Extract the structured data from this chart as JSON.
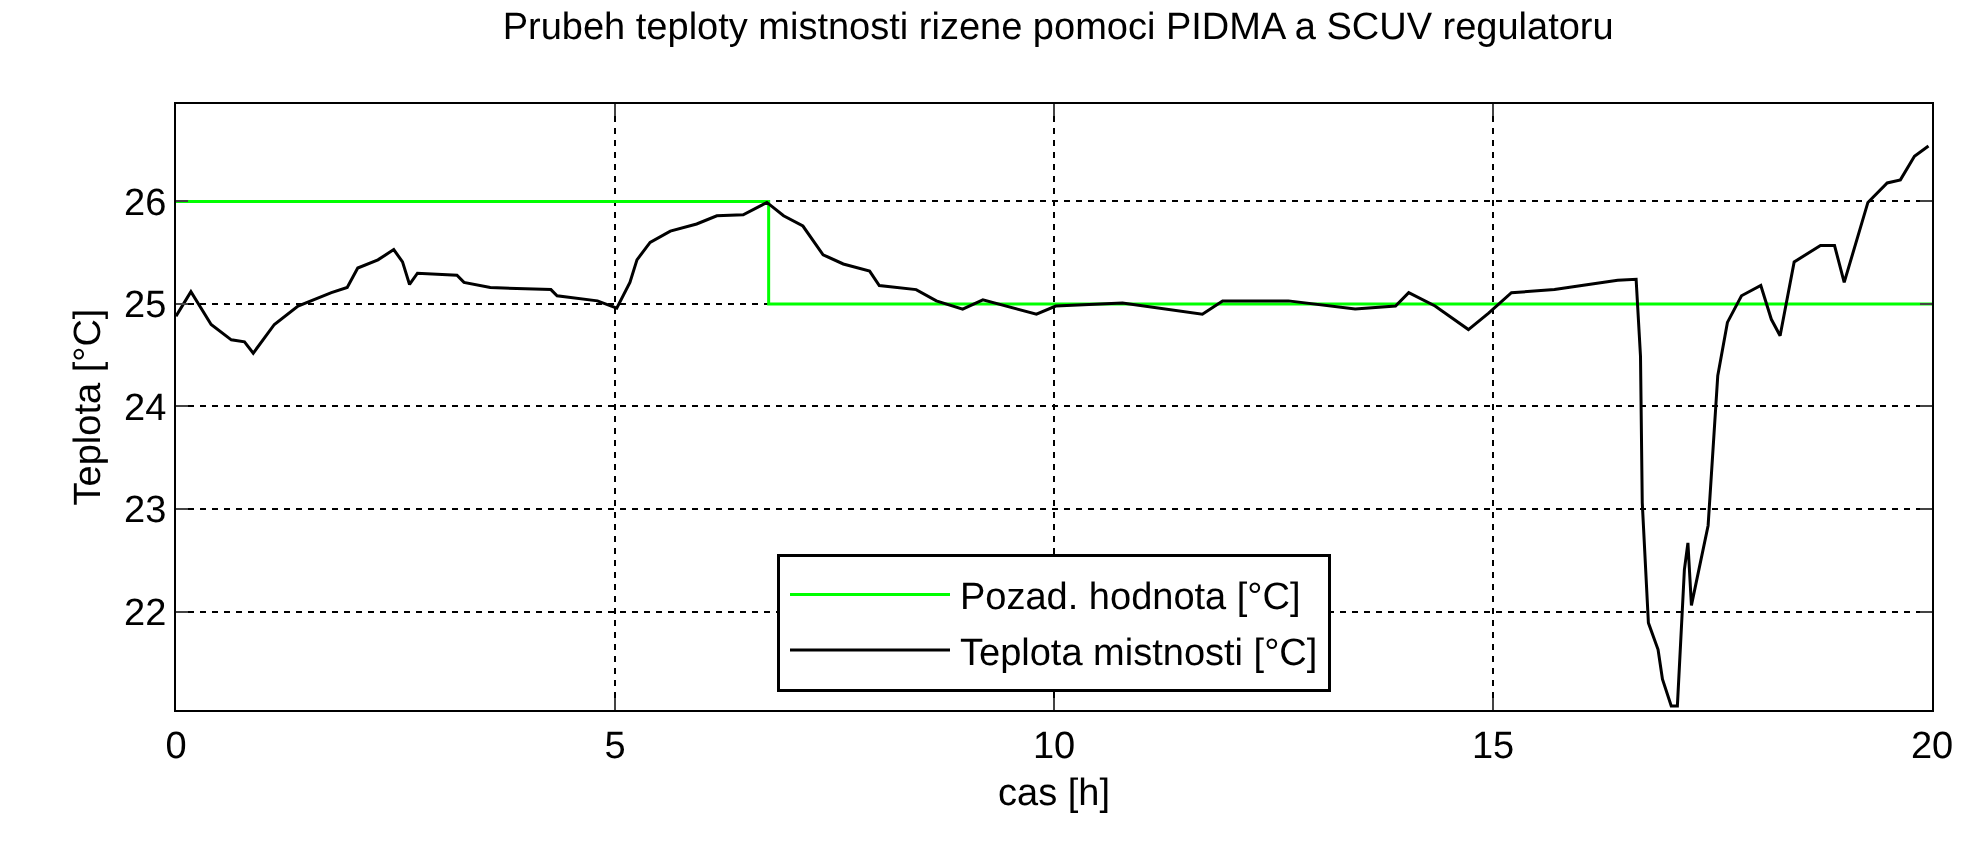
{
  "chart_data": {
    "type": "line",
    "title": "Prubeh teploty mistnosti rizene pomoci PIDMA a SCUV regulatoru",
    "xlabel": "cas [h]",
    "ylabel": "Teplota [°C]",
    "xlim": [
      0,
      20
    ],
    "xticks": [
      0,
      5,
      10,
      15,
      20
    ],
    "ylim": [
      21.04,
      26.95
    ],
    "yticks": [
      22,
      23,
      24,
      25,
      26
    ],
    "grid": true,
    "legend": "bottom",
    "series": [
      {
        "name": "Pozad. hodnota [°C]",
        "type": "step",
        "color": "#00ff00",
        "x": [
          0,
          6.75,
          20
        ],
        "values": [
          26,
          25,
          25
        ]
      },
      {
        "name": "Teplota mistnosti [°C]",
        "color": "#000000",
        "x": [
          0,
          0.17,
          0.4,
          0.63,
          0.78,
          0.88,
          1.12,
          1.39,
          1.77,
          1.95,
          2.07,
          2.3,
          2.48,
          2.58,
          2.66,
          2.75,
          3.2,
          3.28,
          3.58,
          4.27,
          4.34,
          4.8,
          5.02,
          5.17,
          5.25,
          5.4,
          5.63,
          5.93,
          6.16,
          6.46,
          6.73,
          6.92,
          7.14,
          7.37,
          7.6,
          7.9,
          8.01,
          8.43,
          8.66,
          8.96,
          9.19,
          9.8,
          10.02,
          10.78,
          11.69,
          11.92,
          12.67,
          13.43,
          13.89,
          14.04,
          14.34,
          14.72,
          14.95,
          15.21,
          15.7,
          16.01,
          16.42,
          16.63,
          16.68,
          16.7,
          16.77,
          16.88,
          16.93,
          17.03,
          17.1,
          17.18,
          17.22,
          17.26,
          17.45,
          17.56,
          17.67,
          17.83,
          18.05,
          18.17,
          18.27,
          18.43,
          18.73,
          18.89,
          19,
          19.27,
          19.49,
          19.64,
          19.8,
          19.96
        ],
        "values": [
          24.88,
          25.12,
          24.8,
          24.65,
          24.63,
          24.52,
          24.8,
          24.98,
          25.11,
          25.16,
          25.35,
          25.43,
          25.53,
          25.41,
          25.19,
          25.3,
          25.28,
          25.21,
          25.16,
          25.14,
          25.08,
          25.03,
          24.96,
          25.21,
          25.43,
          25.6,
          25.71,
          25.78,
          25.86,
          25.87,
          25.99,
          25.86,
          25.76,
          25.48,
          25.39,
          25.32,
          25.18,
          25.14,
          25.03,
          24.95,
          25.04,
          24.9,
          24.98,
          25.01,
          24.9,
          25.03,
          25.03,
          24.95,
          24.98,
          25.11,
          24.98,
          24.75,
          24.91,
          25.11,
          25.14,
          25.18,
          25.23,
          25.24,
          24.49,
          23.06,
          21.89,
          21.63,
          21.34,
          21.08,
          21.08,
          22.41,
          22.67,
          22.06,
          22.84,
          24.3,
          24.82,
          25.08,
          25.18,
          24.85,
          24.69,
          25.41,
          25.57,
          25.57,
          25.21,
          25.99,
          26.18,
          26.21,
          26.44,
          26.54
        ]
      }
    ]
  }
}
